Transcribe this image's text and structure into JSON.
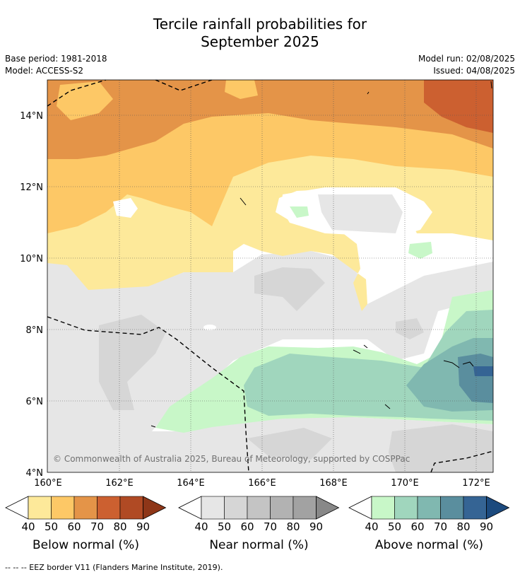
{
  "title_line1": "Tercile rainfall probabilities for",
  "title_line2": "September 2025",
  "base_period": "Base period: 1981-2018",
  "model": "Model: ACCESS-S2",
  "model_run": "Model run: 02/08/2025",
  "issued": "Issued: 04/08/2025",
  "copyright": "© Commonwealth of Australia 2025, Bureau of Meteorology, supported by COSPPac",
  "lat_ticks": [
    "14°N",
    "12°N",
    "10°N",
    "8°N",
    "6°N",
    "4°N"
  ],
  "lon_ticks": [
    "160°E",
    "162°E",
    "164°E",
    "166°E",
    "168°E",
    "170°E",
    "172°E"
  ],
  "map_extent": {
    "lon_min": 160,
    "lon_max": 172.5,
    "lat_min": 4,
    "lat_max": 15
  },
  "colorbars": [
    {
      "label": "Below normal (%)",
      "ticks": [
        "40",
        "50",
        "60",
        "70",
        "80",
        "90"
      ],
      "colors": [
        "#fde99a",
        "#fdc866",
        "#e49448",
        "#cc6030",
        "#b04a24",
        "#8e3618"
      ]
    },
    {
      "label": "Near normal (%)",
      "ticks": [
        "40",
        "50",
        "60",
        "70",
        "80",
        "90"
      ],
      "colors": [
        "#e6e6e6",
        "#d6d6d6",
        "#c4c4c4",
        "#b2b2b2",
        "#a2a2a2",
        "#888888"
      ]
    },
    {
      "label": "Above normal (%)",
      "ticks": [
        "40",
        "50",
        "60",
        "70",
        "80",
        "90"
      ],
      "colors": [
        "#c8f7c8",
        "#a0d6bd",
        "#80b8b0",
        "#5a8e9e",
        "#356494",
        "#1c4a7e"
      ]
    }
  ],
  "footnote": "--  --  -- EEZ border V11 (Flanders Marine Institute, 2019)."
}
